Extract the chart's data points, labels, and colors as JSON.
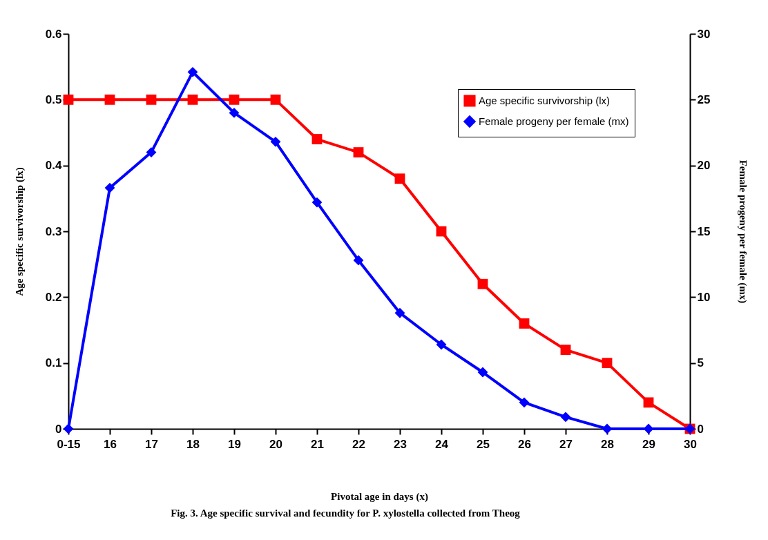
{
  "chart_data": {
    "type": "line",
    "xlabel": "Pivotal age in days (x)",
    "ylabel": "Age specific survivorship (lx)",
    "y2label": "Female progeny per female (mx)",
    "categories": [
      "0-15",
      "16",
      "17",
      "18",
      "19",
      "20",
      "21",
      "22",
      "23",
      "24",
      "25",
      "26",
      "27",
      "28",
      "29",
      "30"
    ],
    "series": [
      {
        "name": "Age specific survivorship (lx)",
        "color": "#ff0000",
        "marker": "square",
        "values": [
          0.5,
          0.5,
          0.5,
          0.5,
          0.5,
          0.5,
          0.44,
          0.42,
          0.38,
          0.3,
          0.22,
          0.16,
          0.12,
          0.1,
          0.04,
          0
        ]
      },
      {
        "name": "Female progeny per female (mx)",
        "color": "#0000ff",
        "marker": "diamond",
        "axis": "y2",
        "values": [
          0,
          18.3,
          21.0,
          27.1,
          24.0,
          21.8,
          17.2,
          12.8,
          8.8,
          6.4,
          4.3,
          2.0,
          0.9,
          0,
          0,
          0
        ]
      }
    ],
    "ylim": [
      0,
      0.6
    ],
    "yticks": [
      0,
      0.1,
      0.2,
      0.3,
      0.4,
      0.5,
      0.6
    ],
    "y2lim": [
      0,
      30
    ],
    "y2ticks": [
      0,
      5,
      10,
      15,
      20,
      25,
      30
    ],
    "grid": false,
    "legend": "top right",
    "line_style": "solid",
    "annotations": [
      "Fig. 3. Age specific survival and fecundity for P. xylostella collected from Theog"
    ]
  }
}
